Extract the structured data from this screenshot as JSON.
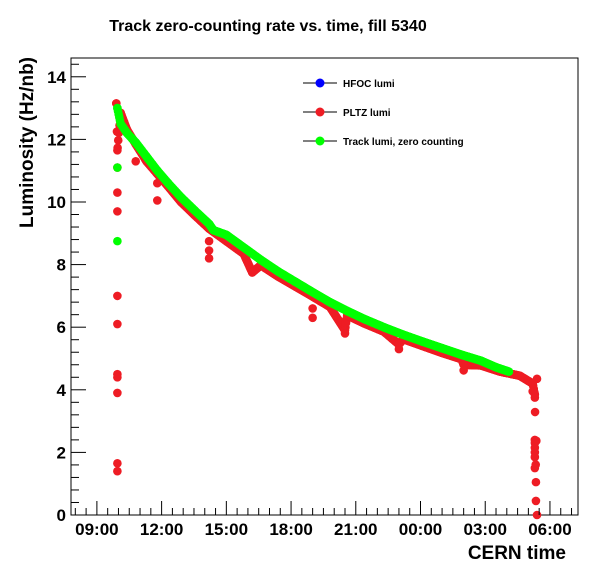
{
  "chart_data": {
    "type": "scatter",
    "title": "Track zero-counting rate vs. time, fill 5340",
    "xlabel": "CERN time",
    "ylabel": "Luminosity (Hz/nb)",
    "x_tick_labels": [
      "09:00",
      "12:00",
      "15:00",
      "18:00",
      "21:00",
      "00:00",
      "03:00",
      "06:00"
    ],
    "y_tick_labels": [
      "0",
      "2",
      "4",
      "6",
      "8",
      "10",
      "12",
      "14"
    ],
    "x_tick_hours": [
      9,
      12,
      15,
      18,
      21,
      24,
      27,
      30
    ],
    "y_ticks": [
      0,
      2,
      4,
      6,
      8,
      10,
      12,
      14
    ],
    "xlim_hours": [
      7.8,
      31.3
    ],
    "ylim": [
      0,
      14.6
    ],
    "grid": false,
    "legend_position": "top-right",
    "series": [
      {
        "name": "HFOC lumi",
        "color": "#0000ff",
        "points": []
      },
      {
        "name": "PLTZ lumi",
        "color": "#ee1c24",
        "points": [
          [
            9.9,
            13.15
          ],
          [
            10.1,
            12.85
          ],
          [
            10.4,
            12.3
          ],
          [
            10.8,
            11.85
          ],
          [
            11.3,
            11.3
          ],
          [
            11.8,
            10.9
          ],
          [
            12.3,
            10.5
          ],
          [
            12.9,
            10.0
          ],
          [
            13.5,
            9.6
          ],
          [
            14.2,
            9.15
          ],
          [
            15.0,
            8.75
          ],
          [
            15.8,
            8.35
          ],
          [
            16.6,
            7.98
          ],
          [
            17.4,
            7.62
          ],
          [
            18.2,
            7.3
          ],
          [
            19.0,
            6.98
          ],
          [
            19.8,
            6.65
          ],
          [
            20.6,
            6.38
          ],
          [
            21.4,
            6.12
          ],
          [
            22.3,
            5.86
          ],
          [
            23.2,
            5.62
          ],
          [
            24.1,
            5.4
          ],
          [
            25.0,
            5.18
          ],
          [
            25.9,
            4.98
          ],
          [
            26.8,
            4.78
          ],
          [
            27.7,
            4.58
          ],
          [
            28.6,
            4.45
          ],
          [
            29.4,
            4.35
          ],
          [
            9.95,
            11.65
          ],
          [
            9.95,
            11.1
          ],
          [
            9.95,
            10.3
          ],
          [
            9.95,
            9.7
          ],
          [
            9.95,
            7.0
          ],
          [
            9.95,
            6.1
          ],
          [
            9.95,
            4.5
          ],
          [
            9.95,
            4.4
          ],
          [
            9.95,
            3.9
          ],
          [
            9.95,
            1.65
          ],
          [
            9.95,
            1.4
          ],
          [
            10.8,
            11.3
          ],
          [
            11.8,
            10.6
          ],
          [
            11.8,
            10.05
          ],
          [
            14.2,
            8.75
          ],
          [
            14.2,
            8.45
          ],
          [
            14.2,
            8.2
          ],
          [
            16.2,
            7.75
          ],
          [
            19.0,
            6.6
          ],
          [
            19.0,
            6.3
          ],
          [
            20.5,
            5.9
          ],
          [
            20.5,
            5.8
          ],
          [
            23.0,
            5.45
          ],
          [
            23.0,
            5.3
          ],
          [
            26.0,
            4.8
          ],
          [
            26.0,
            4.62
          ],
          [
            29.2,
            4.2
          ],
          [
            29.2,
            3.95
          ],
          [
            29.3,
            3.85
          ],
          [
            29.3,
            3.75
          ],
          [
            29.3,
            2.4
          ],
          [
            29.3,
            2.3
          ],
          [
            29.3,
            2.15
          ],
          [
            29.3,
            2.0
          ],
          [
            29.3,
            1.85
          ],
          [
            29.3,
            1.5
          ],
          [
            29.35,
            1.05
          ],
          [
            29.35,
            0.45
          ],
          [
            29.4,
            0.0
          ]
        ]
      },
      {
        "name": "Track lumi, zero counting",
        "color": "#00ff00",
        "points": [
          [
            9.95,
            13.0
          ],
          [
            9.95,
            11.1
          ],
          [
            9.95,
            8.75
          ],
          [
            10.1,
            12.5
          ],
          [
            10.4,
            12.2
          ],
          [
            10.8,
            11.9
          ],
          [
            11.3,
            11.45
          ],
          [
            11.8,
            11.0
          ],
          [
            12.3,
            10.6
          ],
          [
            12.9,
            10.15
          ],
          [
            13.5,
            9.75
          ],
          [
            14.2,
            9.3
          ],
          [
            14.4,
            9.1
          ],
          [
            15.0,
            8.95
          ],
          [
            15.8,
            8.55
          ],
          [
            16.6,
            8.15
          ],
          [
            17.4,
            7.78
          ],
          [
            18.2,
            7.45
          ],
          [
            19.0,
            7.12
          ],
          [
            19.8,
            6.8
          ],
          [
            20.6,
            6.52
          ],
          [
            21.4,
            6.26
          ],
          [
            22.3,
            6.0
          ],
          [
            23.2,
            5.76
          ],
          [
            24.1,
            5.54
          ],
          [
            25.0,
            5.33
          ],
          [
            25.9,
            5.12
          ],
          [
            26.8,
            4.93
          ],
          [
            27.5,
            4.72
          ],
          [
            28.1,
            4.58
          ]
        ]
      }
    ]
  }
}
